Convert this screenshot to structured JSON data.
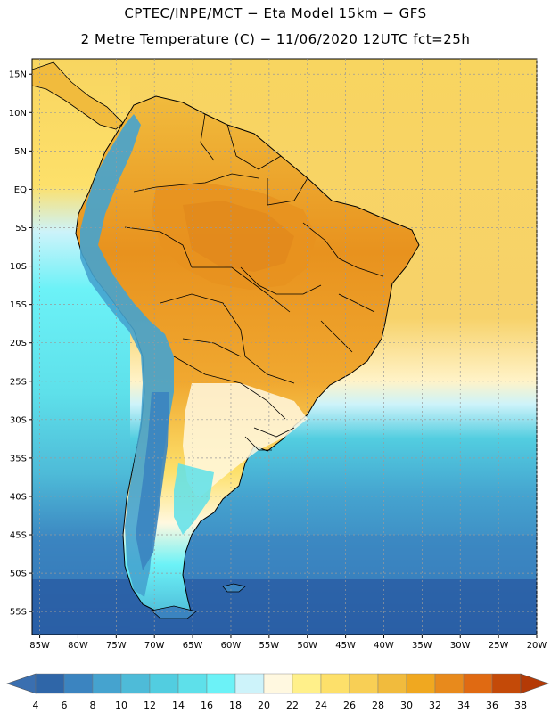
{
  "title_line1": "CPTEC/INPE/MCT −  Eta Model 15km − GFS",
  "title_line2": "2 Metre Temperature (C) − 11/06/2020 12UTC fct=25h",
  "lat_labels": [
    "15N",
    "10N",
    "5N",
    "EQ",
    "5S",
    "10S",
    "15S",
    "20S",
    "25S",
    "30S",
    "35S",
    "40S",
    "45S",
    "50S",
    "55S"
  ],
  "lon_labels": [
    "85W",
    "80W",
    "75W",
    "70W",
    "65W",
    "60W",
    "55W",
    "50W",
    "45W",
    "40W",
    "35W",
    "30W",
    "25W",
    "20W"
  ],
  "colorbar": {
    "levels": [
      "4",
      "6",
      "8",
      "10",
      "12",
      "14",
      "16",
      "18",
      "20",
      "22",
      "24",
      "26",
      "28",
      "30",
      "32",
      "34",
      "36",
      "38"
    ],
    "colors": [
      "#3a6fb0",
      "#2f66a8",
      "#3b84c0",
      "#45a3cf",
      "#4ebbd8",
      "#52cde0",
      "#5ee0ea",
      "#6cf2f7",
      "#cdf3fa",
      "#fff8e0",
      "#fff08a",
      "#fde06a",
      "#f8cf55",
      "#f1bb3d",
      "#f0a820",
      "#e88a1c",
      "#e06a12",
      "#c44a08",
      "#b43a06"
    ]
  },
  "colors": {
    "ocean_south": "#2a5fa6",
    "ocean_mid": "#45a3cf",
    "ocean_light": "#5ee0ea",
    "warm_ocean": "#f8cf55",
    "land_hot": "#e8921e",
    "land_warm": "#f0b13a",
    "andes": "#3b84c0",
    "border": "#000000"
  }
}
